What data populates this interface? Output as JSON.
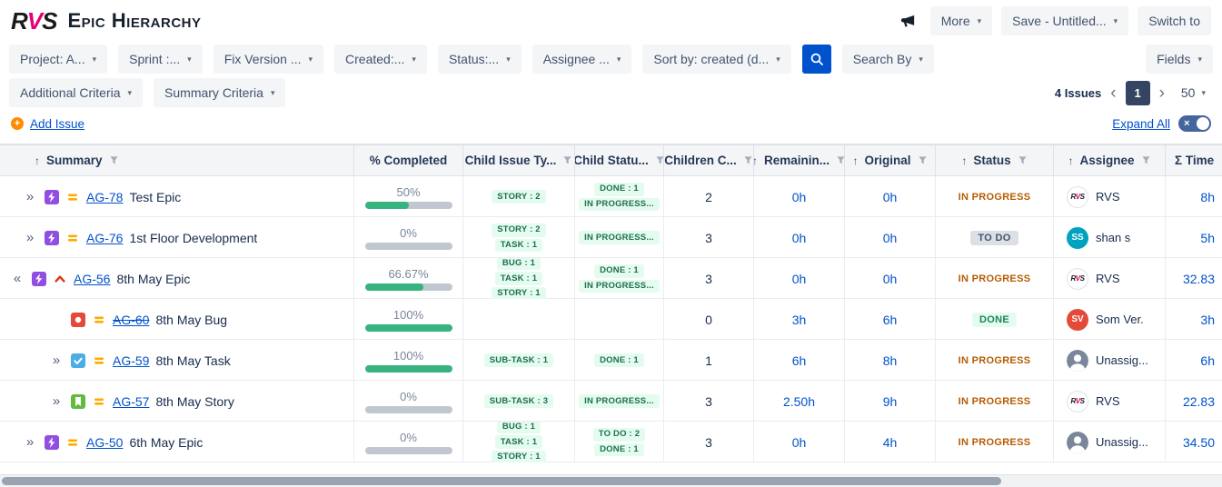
{
  "colors": {
    "link": "#0052CC",
    "progress_green": "#36B37E",
    "progress_track": "#C1C7D0",
    "badge_bg": "#E3FCEF",
    "badge_text": "#216E4E",
    "status_inprogress_text": "#B65C02",
    "status_done_text": "#1F845A",
    "status_todo_bg": "#DCDFE4",
    "status_todo_text": "#44546F",
    "logo_pink": "#E6007A",
    "search_button_bg": "#0052CC",
    "page_box_bg": "#344563"
  },
  "header": {
    "logo": {
      "r": "R",
      "v": "V",
      "s": "S"
    },
    "title": "Epic Hierarchy",
    "more_label": "More",
    "save_label": "Save - Untitled...",
    "switch_label": "Switch to"
  },
  "filter_bar": {
    "filters": [
      {
        "id": "project",
        "label": "Project: A..."
      },
      {
        "id": "sprint",
        "label": "Sprint :..."
      },
      {
        "id": "fix-version",
        "label": "Fix Version ..."
      },
      {
        "id": "created",
        "label": "Created:..."
      },
      {
        "id": "status",
        "label": "Status:..."
      },
      {
        "id": "assignee",
        "label": "Assignee ..."
      },
      {
        "id": "sort-by",
        "label": "Sort by: created (d..."
      }
    ],
    "search_by_label": "Search By",
    "fields_label": "Fields"
  },
  "criteria_bar": {
    "additional_label": "Additional Criteria",
    "summary_label": "Summary Criteria",
    "issues_count": "4 Issues",
    "page_number": "1",
    "page_size": "50"
  },
  "actions_bar": {
    "add_issue_label": "Add Issue",
    "expand_all_label": "Expand All"
  },
  "table": {
    "columns": [
      {
        "label": "Summary",
        "sorted": true
      },
      {
        "label": "% Completed",
        "sorted": false
      },
      {
        "label": "Child Issue Ty...",
        "sorted": false
      },
      {
        "label": "Child Statu...",
        "sorted": false
      },
      {
        "label": "Children C...",
        "sorted": false
      },
      {
        "label": "Remainin...",
        "sorted": true
      },
      {
        "label": "Original",
        "sorted": true
      },
      {
        "label": "Status",
        "sorted": true
      },
      {
        "label": "Assignee",
        "sorted": true
      },
      {
        "label": "Σ Time",
        "sorted": false
      }
    ],
    "rows": [
      {
        "expander": "»",
        "indent": 0,
        "type_icon": "epic-icon",
        "priority_icon": "medium-priority-icon",
        "key": "AG-78",
        "key_struck": false,
        "summary": "Test Epic",
        "percent_label": "50%",
        "percent_value": 50,
        "child_types": [
          "STORY : 2"
        ],
        "child_statuses": [
          "DONE : 1",
          "IN PROGRESS..."
        ],
        "children_count": "2",
        "remaining": "0h",
        "original": "0h",
        "status": "IN PROGRESS",
        "status_kind": "inprogress",
        "assignee": {
          "kind": "rvs",
          "name": "RVS"
        },
        "time": "8h"
      },
      {
        "expander": "»",
        "indent": 0,
        "type_icon": "epic-icon",
        "priority_icon": "medium-priority-icon",
        "key": "AG-76",
        "key_struck": false,
        "summary": "1st Floor Development",
        "percent_label": "0%",
        "percent_value": 0,
        "child_types": [
          "STORY : 2",
          "TASK : 1"
        ],
        "child_statuses": [
          "IN PROGRESS..."
        ],
        "children_count": "3",
        "remaining": "0h",
        "original": "0h",
        "status": "TO DO",
        "status_kind": "todo",
        "assignee": {
          "kind": "initials",
          "initials": "SS",
          "color": "#00A3BF",
          "name": "shan s"
        },
        "time": "5h"
      },
      {
        "expander": "«",
        "indent": 0,
        "type_icon": "epic-icon",
        "priority_icon": "highest-priority-icon",
        "key": "AG-56",
        "key_struck": false,
        "summary": "8th May Epic",
        "percent_label": "66.67%",
        "percent_value": 66.67,
        "child_types": [
          "BUG : 1",
          "TASK : 1",
          "STORY : 1"
        ],
        "child_statuses": [
          "DONE : 1",
          "IN PROGRESS..."
        ],
        "children_count": "3",
        "remaining": "0h",
        "original": "0h",
        "status": "IN PROGRESS",
        "status_kind": "inprogress",
        "assignee": {
          "kind": "rvs",
          "name": "RVS"
        },
        "time": "32.83"
      },
      {
        "expander": "",
        "indent": 1,
        "type_icon": "bug-icon",
        "priority_icon": "medium-priority-icon",
        "key": "AG-60",
        "key_struck": true,
        "summary": "8th May Bug",
        "percent_label": "100%",
        "percent_value": 100,
        "child_types": [],
        "child_statuses": [],
        "children_count": "0",
        "remaining": "3h",
        "original": "6h",
        "status": "DONE",
        "status_kind": "done",
        "assignee": {
          "kind": "initials",
          "initials": "SV",
          "color": "#E5493A",
          "name": "Som Ver."
        },
        "time": "3h"
      },
      {
        "expander": "»",
        "indent": 1,
        "type_icon": "task-icon",
        "priority_icon": "medium-priority-icon",
        "key": "AG-59",
        "key_struck": false,
        "summary": "8th May Task",
        "percent_label": "100%",
        "percent_value": 100,
        "child_types": [
          "SUB-TASK : 1"
        ],
        "child_statuses": [
          "DONE : 1"
        ],
        "children_count": "1",
        "remaining": "6h",
        "original": "8h",
        "status": "IN PROGRESS",
        "status_kind": "inprogress",
        "assignee": {
          "kind": "unassigned",
          "name": "Unassig..."
        },
        "time": "6h"
      },
      {
        "expander": "»",
        "indent": 1,
        "type_icon": "story-icon",
        "priority_icon": "medium-priority-icon",
        "key": "AG-57",
        "key_struck": false,
        "summary": "8th May Story",
        "percent_label": "0%",
        "percent_value": 0,
        "child_types": [
          "SUB-TASK : 3"
        ],
        "child_statuses": [
          "IN PROGRESS..."
        ],
        "children_count": "3",
        "remaining": "2.50h",
        "original": "9h",
        "status": "IN PROGRESS",
        "status_kind": "inprogress",
        "assignee": {
          "kind": "rvs",
          "name": "RVS"
        },
        "time": "22.83"
      },
      {
        "expander": "»",
        "indent": 0,
        "type_icon": "epic-icon",
        "priority_icon": "medium-priority-icon",
        "key": "AG-50",
        "key_struck": false,
        "summary": "6th May Epic",
        "percent_label": "0%",
        "percent_value": 0,
        "child_types": [
          "BUG : 1",
          "TASK : 1",
          "STORY : 1"
        ],
        "child_statuses": [
          "TO DO : 2",
          "DONE : 1"
        ],
        "children_count": "3",
        "remaining": "0h",
        "original": "4h",
        "status": "IN PROGRESS",
        "status_kind": "inprogress",
        "assignee": {
          "kind": "unassigned",
          "name": "Unassig..."
        },
        "time": "34.50"
      }
    ]
  }
}
